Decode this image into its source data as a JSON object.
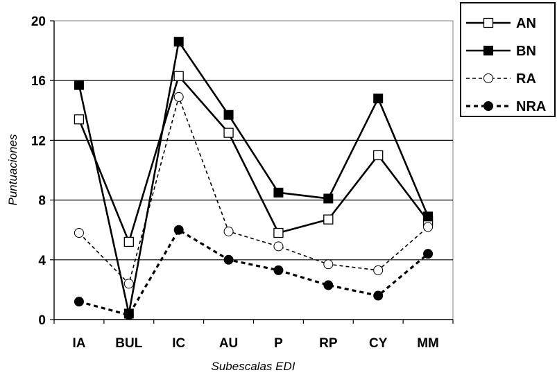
{
  "chart_data": {
    "type": "line",
    "title": "",
    "xlabel": "Subescalas EDI",
    "ylabel": "Puntuaciones",
    "ylim": [
      0,
      20
    ],
    "yticks": [
      0,
      4,
      8,
      12,
      16,
      20
    ],
    "grid": "horizontal",
    "legend_position": "top-right",
    "categories": [
      "IA",
      "BUL",
      "IC",
      "AU",
      "P",
      "RP",
      "CY",
      "MM"
    ],
    "series": [
      {
        "name": "AN",
        "line_style": "solid",
        "marker": "square-open",
        "values": [
          13.4,
          5.2,
          16.3,
          12.5,
          5.8,
          6.7,
          11.0,
          6.6
        ]
      },
      {
        "name": "BN",
        "line_style": "solid",
        "marker": "square-filled",
        "values": [
          15.7,
          0.4,
          18.6,
          13.7,
          8.5,
          8.1,
          14.8,
          6.9
        ]
      },
      {
        "name": "RA",
        "line_style": "dashed-thin",
        "marker": "circle-open",
        "values": [
          5.8,
          2.4,
          14.9,
          5.9,
          4.9,
          3.7,
          3.3,
          6.2
        ]
      },
      {
        "name": "NRA",
        "line_style": "dashed-thick",
        "marker": "circle-filled",
        "values": [
          1.2,
          0.3,
          6.0,
          4.0,
          3.3,
          2.3,
          1.6,
          4.4
        ]
      }
    ]
  }
}
